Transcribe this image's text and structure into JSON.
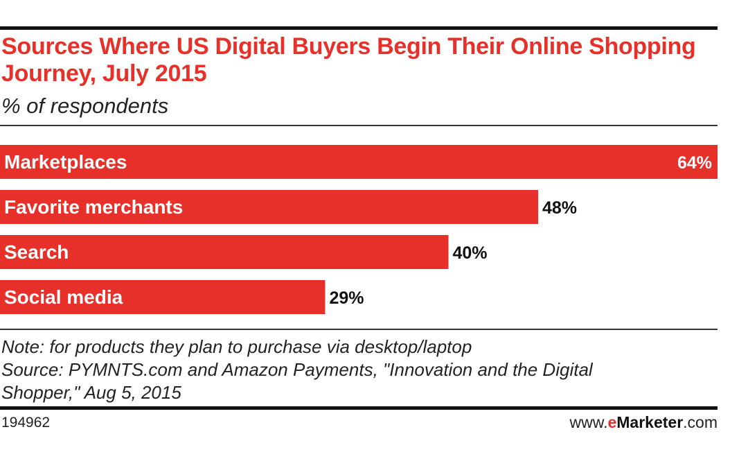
{
  "chart_data": {
    "type": "bar",
    "orientation": "horizontal",
    "title": "Sources Where US Digital Buyers Begin Their Online Shopping Journey, July 2015",
    "subtitle": "% of respondents",
    "categories": [
      "Marketplaces",
      "Favorite merchants",
      "Search",
      "Social media"
    ],
    "values": [
      64,
      48,
      40,
      29
    ],
    "value_labels": [
      "64%",
      "48%",
      "40%",
      "29%"
    ],
    "xlim": [
      0,
      64
    ],
    "grid": false,
    "legend": "none",
    "bar_color": "#e8302a"
  },
  "notes": {
    "note": "Note: for products they plan to purchase via desktop/laptop",
    "source_line1": "Source: PYMNTS.com and Amazon Payments, \"Innovation and the Digital",
    "source_line2": "Shopper,\" Aug 5, 2015"
  },
  "footer": {
    "chart_id": "194962",
    "brand_prefix": "www.",
    "brand_e": "e",
    "brand_marketer": "Marketer",
    "brand_suffix": ".com"
  },
  "colors": {
    "accent": "#e8302a",
    "text": "#222222",
    "rule": "#111111"
  }
}
